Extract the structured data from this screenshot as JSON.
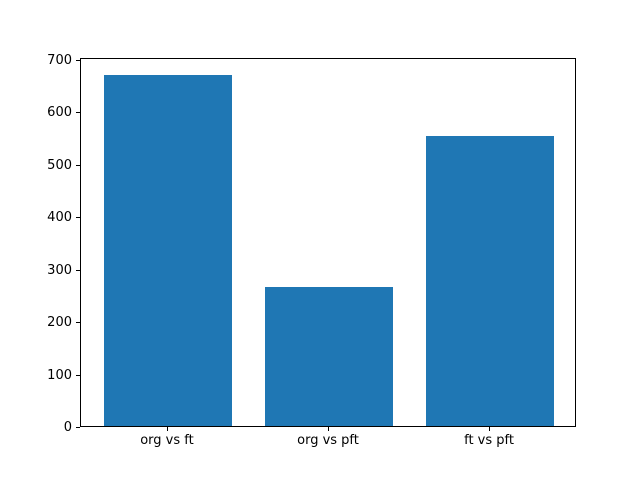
{
  "chart_data": {
    "type": "bar",
    "title": "",
    "xlabel": "",
    "ylabel": "",
    "categories": [
      "org vs ft",
      "org vs pft",
      "ft vs pft"
    ],
    "values": [
      670,
      265,
      552
    ],
    "yticks": [
      0,
      100,
      200,
      300,
      400,
      500,
      600,
      700
    ],
    "ylim": [
      0,
      703.5
    ],
    "xlim": [
      -0.54,
      2.54
    ],
    "bar_width": 0.8,
    "bar_color": "#1f77b4",
    "spine_color": "#000000",
    "tick_label_color": "#000000",
    "grid": false,
    "legend": null
  }
}
